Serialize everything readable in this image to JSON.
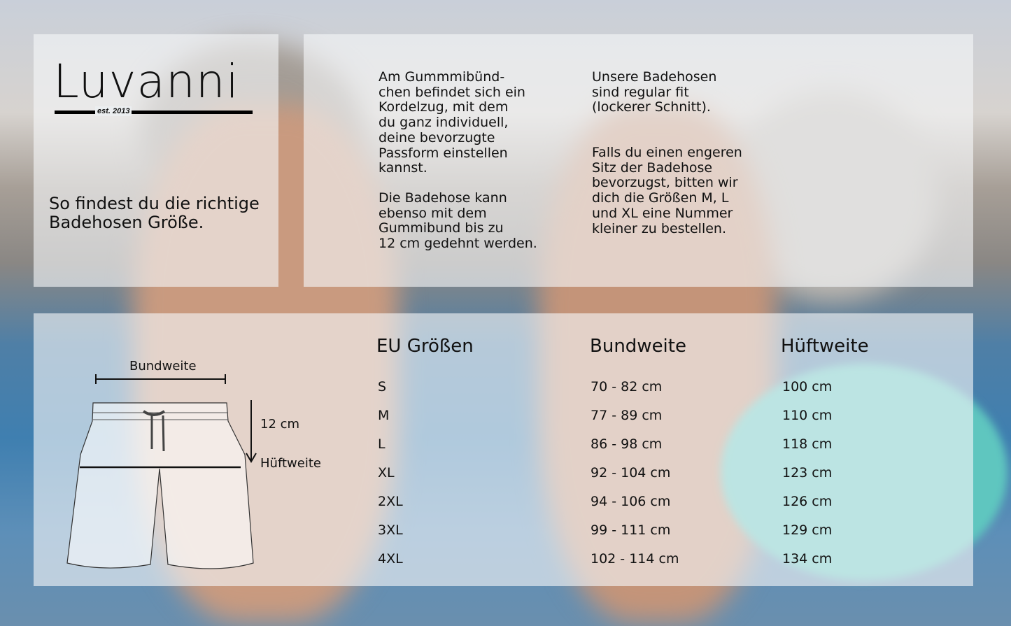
{
  "logo": {
    "brand": "Luvanni",
    "tagline": "est. 2013"
  },
  "intro": {
    "heading": "So findest du die richtige\nBadehosen Größe."
  },
  "info": {
    "col1_p1": "Am Gummmibünd-\nchen befindet sich ein\nKordelzug, mit dem\ndu ganz individuell,\ndeine bevorzugte\nPassform einstellen\nkannst.",
    "col1_p2": "Die Badehose kann\nebenso mit dem\nGummibund bis zu\n12 cm gedehnt werden.",
    "col2_p1": "Unsere Badehosen\nsind regular fit\n(lockerer Schnitt).",
    "col2_p2": "Falls du einen engeren\nSitz der Badehose\nbevorzugst, bitten wir\ndich die Größen M, L\nund XL eine Nummer\nkleiner zu bestellen."
  },
  "diagram": {
    "waist_label": "Bundweite",
    "stretch_label": "12 cm",
    "hip_label": "Hüftweite"
  },
  "size_table": {
    "headers": [
      "EU Größen",
      "Bundweite",
      "Hüftweite"
    ],
    "rows": [
      [
        "S",
        "70 - 82 cm",
        "100 cm"
      ],
      [
        "M",
        "77 - 89 cm",
        "110 cm"
      ],
      [
        "L",
        "86 - 98 cm",
        "118 cm"
      ],
      [
        "XL",
        "92 - 104 cm",
        "123 cm"
      ],
      [
        "2XL",
        "94 - 106 cm",
        "126 cm"
      ],
      [
        "3XL",
        "99 - 111 cm",
        "129 cm"
      ],
      [
        "4XL",
        "102 - 114 cm",
        "134 cm"
      ]
    ]
  }
}
